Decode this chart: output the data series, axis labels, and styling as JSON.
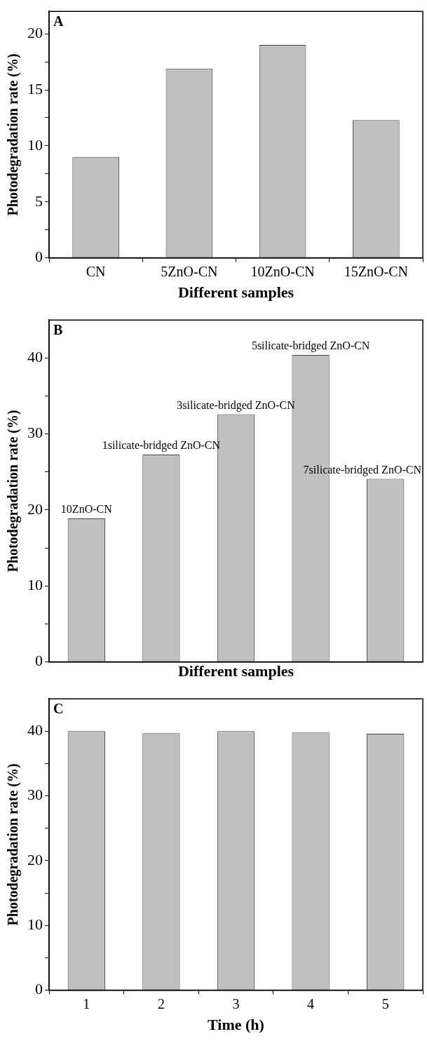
{
  "chart_data": [
    {
      "type": "bar",
      "annotations": [
        "A"
      ],
      "xlabel": "Different samples",
      "ylabel": "Photodegradation rate (%)",
      "categories": [
        "CN",
        "5ZnO-CN",
        "10ZnO-CN",
        "15ZnO-CN"
      ],
      "values": [
        9.0,
        16.9,
        19.0,
        12.3
      ],
      "color": "#c0c0c0",
      "ylim": [
        0,
        22
      ],
      "yticks": [
        0,
        {
          "value": 2.5,
          "label": null
        },
        5,
        {
          "value": 7.5,
          "label": null
        },
        10,
        {
          "value": 12.5,
          "label": null
        },
        15,
        {
          "value": 17.5,
          "label": null
        },
        20
      ],
      "grid": false,
      "legend": false
    },
    {
      "type": "bar",
      "annotations": [
        "B"
      ],
      "xlabel": "Different samples",
      "ylabel": "Photodegradation rate (%)",
      "categories": [
        "10ZnO-CN",
        "1silicate-bridged ZnO-CN",
        "3silicate-bridged ZnO-CN",
        "5silicate-bridged ZnO-CN",
        "7silicate-bridged ZnO-CN"
      ],
      "values": [
        18.9,
        27.3,
        32.6,
        40.4,
        24.1
      ],
      "color": "#c0c0c0",
      "ylim": [
        0,
        45
      ],
      "yticks": [
        0,
        {
          "value": 5,
          "label": null
        },
        10,
        {
          "value": 15,
          "label": null
        },
        20,
        {
          "value": 25,
          "label": null
        },
        30,
        {
          "value": 35,
          "label": null
        },
        40
      ],
      "tick_labels": "y",
      "grid": false,
      "legend": false
    },
    {
      "type": "bar",
      "annotations": [
        "C"
      ],
      "xlabel": "Time (h)",
      "ylabel": "Photodegradation rate (%)",
      "categories": [
        "1",
        "2",
        "3",
        "4",
        "5"
      ],
      "values": [
        40.0,
        39.7,
        40.0,
        39.8,
        39.6
      ],
      "color": "#c0c0c0",
      "ylim": [
        0,
        45
      ],
      "yticks": [
        0,
        {
          "value": 5,
          "label": null
        },
        10,
        {
          "value": 15,
          "label": null
        },
        20,
        {
          "value": 25,
          "label": null
        },
        30,
        {
          "value": 35,
          "label": null
        },
        40
      ],
      "grid": false,
      "legend": false
    }
  ]
}
